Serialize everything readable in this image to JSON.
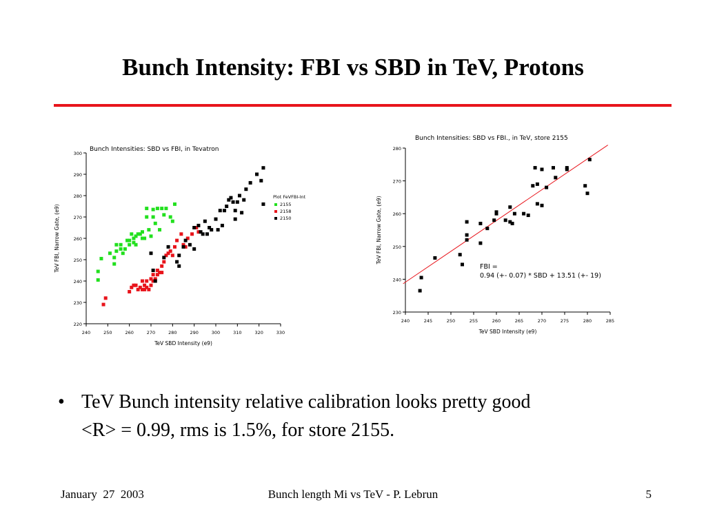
{
  "slide": {
    "title": "Bunch Intensity: FBI vs SBD in TeV, Protons",
    "rule_color": "#e8141b",
    "bullet_symbol": "•",
    "bullet_lines": [
      "TeV Bunch intensity relative calibration looks pretty good",
      "<R> = 0.99, rms is 1.5%, for store 2155."
    ]
  },
  "footer": {
    "date": "January  27  2003",
    "center": "Bunch length Mi vs TeV - P. Lebrun",
    "page": "5"
  },
  "chart_data": [
    {
      "type": "scatter",
      "title": "Bunch Intensities: SBD vs FBI, in Tevatron",
      "xlabel": "TeV SBD Intensity (e9)",
      "ylabel": "TeV FBI, Narrow Gate, (e9)",
      "xlim": [
        240,
        330
      ],
      "ylim": [
        220,
        300
      ],
      "xticks": [
        "240",
        "250",
        "260",
        "270",
        "280",
        "290",
        "300",
        "310",
        "320",
        "330"
      ],
      "yticks": [
        "220",
        "230",
        "240",
        "250",
        "260",
        "270",
        "280",
        "290",
        "300"
      ],
      "legend_title": "Plot FeVFBI-Int",
      "legend_position": "right",
      "grid": false,
      "series": [
        {
          "name": "2155",
          "color": "#22e01e",
          "points": [
            [
              245.5,
              244.5
            ],
            [
              245.5,
              240.5
            ],
            [
              247,
              250.5
            ],
            [
              251,
              253
            ],
            [
              253,
              251
            ],
            [
              253,
              248
            ],
            [
              254,
              257
            ],
            [
              254,
              254
            ],
            [
              256,
              257
            ],
            [
              256,
              255
            ],
            [
              257,
              253
            ],
            [
              258,
              255
            ],
            [
              259,
              259
            ],
            [
              260,
              257
            ],
            [
              260,
              259
            ],
            [
              261,
              262
            ],
            [
              262,
              260
            ],
            [
              262,
              258
            ],
            [
              263,
              257
            ],
            [
              263,
              261
            ],
            [
              264,
              262
            ],
            [
              265,
              262
            ],
            [
              266,
              263
            ],
            [
              266,
              260
            ],
            [
              267,
              260
            ],
            [
              268,
              274
            ],
            [
              268,
              270
            ],
            [
              269,
              264
            ],
            [
              270,
              261
            ],
            [
              271,
              270
            ],
            [
              271,
              273.5
            ],
            [
              272,
              267
            ],
            [
              273,
              274
            ],
            [
              274,
              264
            ],
            [
              275,
              274
            ],
            [
              276,
              271
            ],
            [
              277,
              274
            ],
            [
              279,
              270
            ],
            [
              280,
              268
            ],
            [
              281,
              276
            ]
          ]
        },
        {
          "name": "2158",
          "color": "#e8141b",
          "points": [
            [
              248,
              229
            ],
            [
              249,
              232
            ],
            [
              260,
              235
            ],
            [
              261,
              237
            ],
            [
              262,
              238
            ],
            [
              263,
              238
            ],
            [
              264,
              236
            ],
            [
              265,
              237
            ],
            [
              266,
              240
            ],
            [
              266,
              236
            ],
            [
              267,
              238
            ],
            [
              267,
              236
            ],
            [
              268,
              237
            ],
            [
              268,
              240
            ],
            [
              269,
              236
            ],
            [
              270,
              238
            ],
            [
              270,
              241
            ],
            [
              271,
              243
            ],
            [
              271,
              240
            ],
            [
              272,
              241
            ],
            [
              273,
              243
            ],
            [
              273,
              245
            ],
            [
              274,
              244
            ],
            [
              275,
              247
            ],
            [
              275,
              244
            ],
            [
              276,
              249
            ],
            [
              277,
              252
            ],
            [
              278,
              253
            ],
            [
              279,
              254
            ],
            [
              280,
              252
            ],
            [
              281,
              256
            ],
            [
              282,
              259
            ],
            [
              284,
              262
            ],
            [
              285,
              257
            ],
            [
              286,
              256
            ],
            [
              287,
              260
            ],
            [
              289,
              262
            ],
            [
              291,
              265
            ],
            [
              292,
              263
            ]
          ]
        },
        {
          "name": "2150",
          "color": "#000000",
          "points": [
            [
              270,
              253
            ],
            [
              271,
              245
            ],
            [
              272,
              240
            ],
            [
              276,
              251
            ],
            [
              278,
              256
            ],
            [
              282,
              249
            ],
            [
              283,
              252
            ],
            [
              283,
              247
            ],
            [
              285,
              256
            ],
            [
              286,
              259
            ],
            [
              288,
              257
            ],
            [
              290,
              255
            ],
            [
              290,
              265
            ],
            [
              292,
              266
            ],
            [
              293,
              263
            ],
            [
              294,
              262
            ],
            [
              295,
              268
            ],
            [
              296,
              262
            ],
            [
              297,
              265
            ],
            [
              298,
              264
            ],
            [
              300,
              269
            ],
            [
              301,
              264
            ],
            [
              302,
              273
            ],
            [
              303,
              266
            ],
            [
              304,
              273
            ],
            [
              305,
              275
            ],
            [
              306,
              278
            ],
            [
              307,
              279
            ],
            [
              308,
              277
            ],
            [
              309,
              273
            ],
            [
              309,
              269
            ],
            [
              310,
              277
            ],
            [
              311,
              280
            ],
            [
              312,
              272
            ],
            [
              313,
              278
            ],
            [
              314,
              283
            ],
            [
              316,
              286
            ],
            [
              319,
              290
            ],
            [
              321,
              287
            ],
            [
              322,
              276
            ],
            [
              322,
              293
            ]
          ]
        }
      ]
    },
    {
      "type": "scatter",
      "title": "Bunch Intensities: SBD vs FBI., in TeV, store 2155",
      "xlabel": "TeV SBD Intensity (e9)",
      "ylabel": "TeV FBI, Narrow Gate, (e9)",
      "xlim": [
        240,
        285
      ],
      "ylim": [
        230,
        280
      ],
      "xticks": [
        "240",
        "245",
        "250",
        "255",
        "260",
        "265",
        "270",
        "275",
        "280",
        "285"
      ],
      "yticks": [
        "230",
        "240",
        "250",
        "260",
        "270",
        "280"
      ],
      "grid": false,
      "fit_annotation": [
        "FBI =",
        "0.94 (+- 0.07) * SBD  + 13.51 (+- 19)"
      ],
      "fit": {
        "slope": 0.94,
        "intercept": 13.51,
        "color": "#e8141b"
      },
      "series": [
        {
          "color": "#000000",
          "points": [
            [
              243.2,
              236.5
            ],
            [
              243.5,
              240.5
            ],
            [
              246.5,
              246.5
            ],
            [
              252,
              247.5
            ],
            [
              252.5,
              244.5
            ],
            [
              253.5,
              252
            ],
            [
              253.5,
              253.5
            ],
            [
              253.5,
              257.5
            ],
            [
              256.5,
              251
            ],
            [
              256.5,
              257
            ],
            [
              258,
              255.5
            ],
            [
              259.5,
              258
            ],
            [
              260,
              260.5
            ],
            [
              260,
              260
            ],
            [
              262,
              258
            ],
            [
              263,
              262
            ],
            [
              263,
              257.5
            ],
            [
              263.5,
              257
            ],
            [
              264,
              260
            ],
            [
              266,
              260
            ],
            [
              267,
              259.5
            ],
            [
              268,
              268.5
            ],
            [
              268.5,
              274
            ],
            [
              269,
              263
            ],
            [
              269,
              269
            ],
            [
              270,
              262.5
            ],
            [
              270,
              273.5
            ],
            [
              271,
              268
            ],
            [
              272.5,
              274
            ],
            [
              273,
              271
            ],
            [
              275.5,
              273.5
            ],
            [
              275.5,
              274
            ],
            [
              279.5,
              268.5
            ],
            [
              280,
              266.2
            ],
            [
              280.5,
              276.5
            ]
          ]
        }
      ]
    }
  ]
}
